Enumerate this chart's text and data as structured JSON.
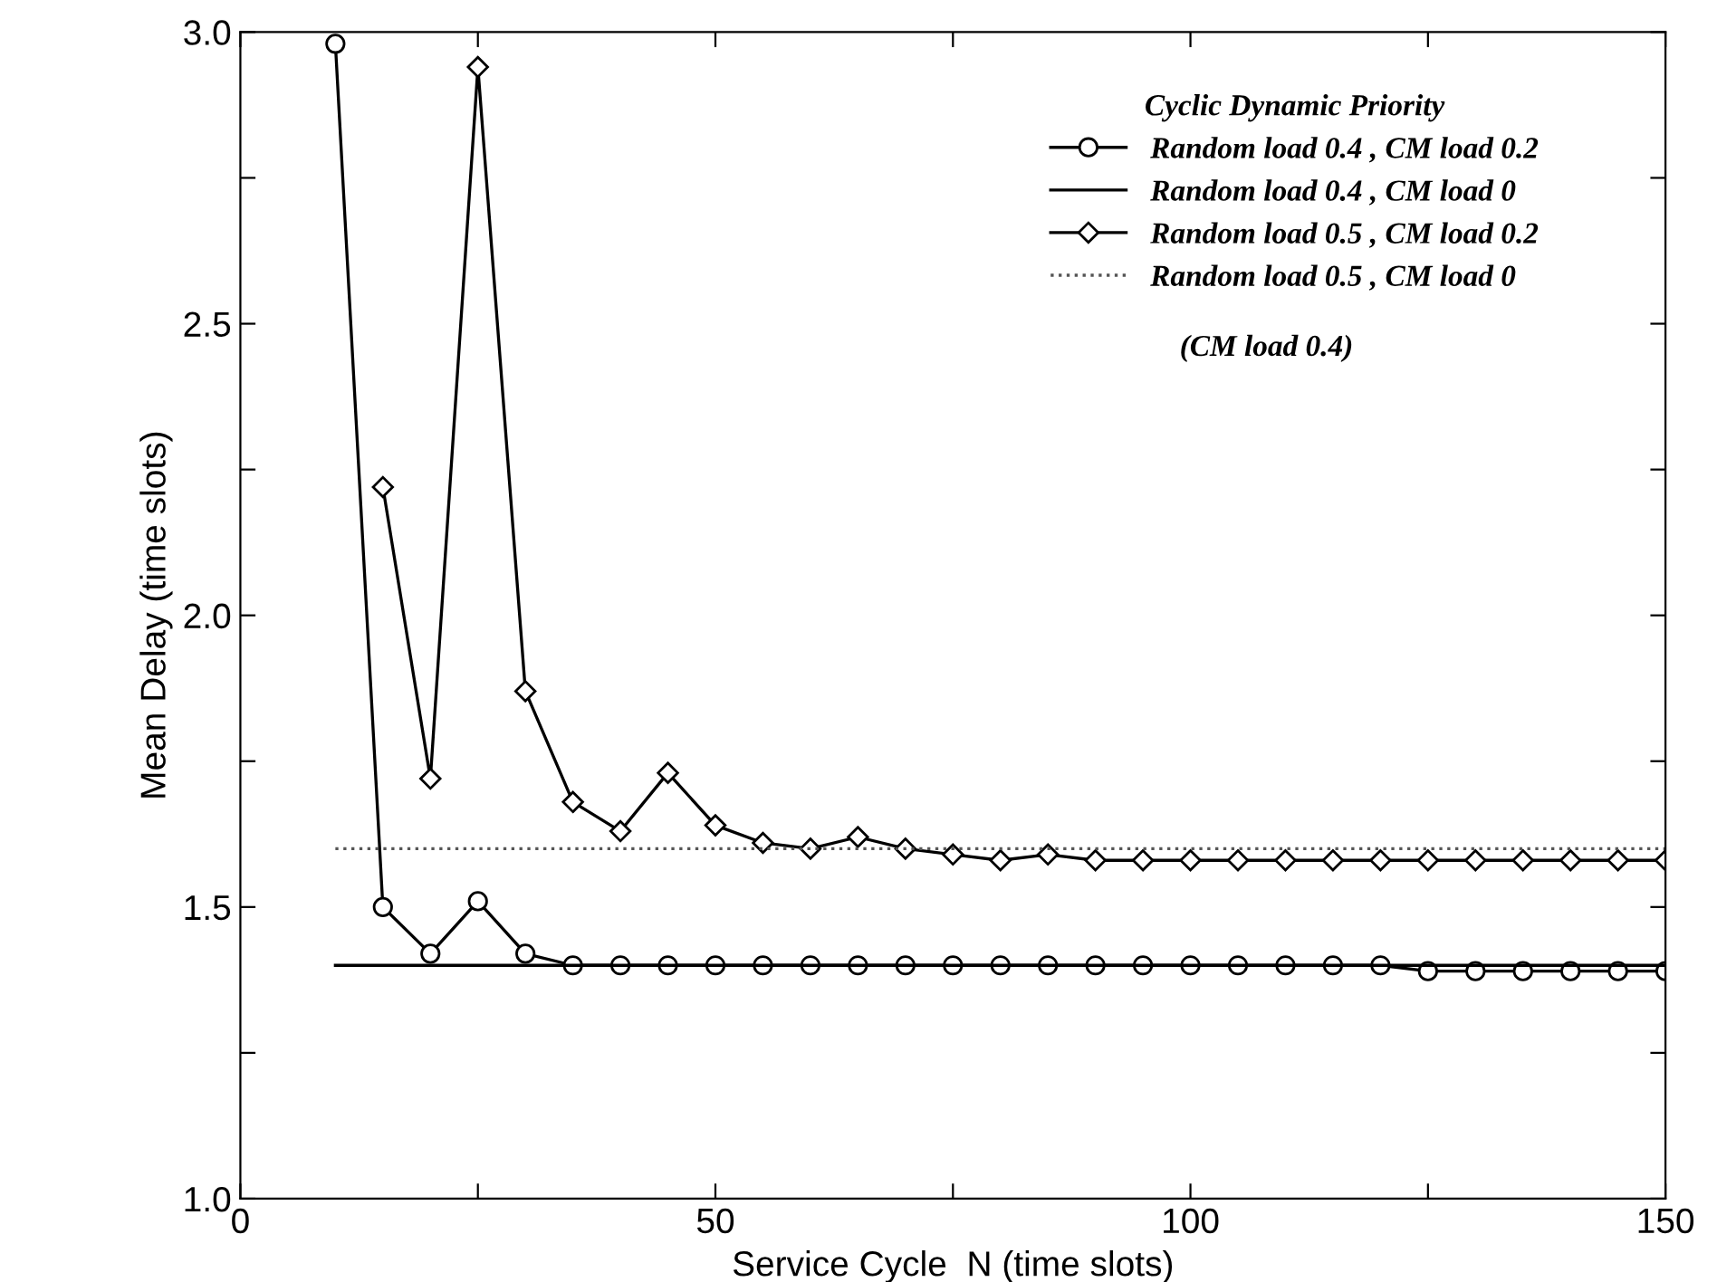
{
  "chart_data": {
    "type": "line",
    "xlabel": "Service Cycle  N (time slots)",
    "ylabel": "Mean Delay (time slots)",
    "legend_title": "Cyclic Dynamic Priority",
    "legend": "top right",
    "grid": false,
    "xlim": [
      0,
      150
    ],
    "ylim": [
      1.0,
      3.0
    ],
    "xticks": [
      0,
      {
        "value": 25,
        "label": null
      },
      50,
      {
        "value": 75,
        "label": null
      },
      100,
      {
        "value": 125,
        "label": null
      },
      150
    ],
    "yticks": [
      {
        "value": 1.0,
        "label": "1.0"
      },
      {
        "value": 1.25,
        "label": null
      },
      1.5,
      {
        "value": 1.75,
        "label": null
      },
      {
        "value": 2.0,
        "label": "2.0"
      },
      {
        "value": 2.25,
        "label": null
      },
      2.5,
      {
        "value": 2.75,
        "label": null
      },
      {
        "value": 3.0,
        "label": "3.0"
      }
    ],
    "annotations": [
      "(CM load 0.4)"
    ],
    "series": [
      {
        "name": "Random load 0.4 , CM load 0.2",
        "color": "#000000",
        "marker": "circle",
        "line_style": "solid",
        "x": [
          10,
          15,
          20,
          25,
          30,
          35,
          40,
          45,
          50,
          55,
          60,
          65,
          70,
          75,
          80,
          85,
          90,
          95,
          100,
          105,
          110,
          115,
          120,
          125,
          130,
          135,
          140,
          145,
          150
        ],
        "values": [
          2.98,
          1.5,
          1.42,
          1.51,
          1.42,
          1.4,
          1.4,
          1.4,
          1.4,
          1.4,
          1.4,
          1.4,
          1.4,
          1.4,
          1.4,
          1.4,
          1.4,
          1.4,
          1.4,
          1.4,
          1.4,
          1.4,
          1.4,
          1.39,
          1.39,
          1.39,
          1.39,
          1.39,
          1.39
        ]
      },
      {
        "name": "Random load 0.4 , CM load 0",
        "color": "#000000",
        "marker": "none",
        "line_style": "solid",
        "x": [
          10,
          150
        ],
        "values": [
          1.4,
          1.4
        ]
      },
      {
        "name": "Random load 0.5 , CM load 0.2",
        "color": "#000000",
        "marker": "diamond",
        "line_style": "solid",
        "x": [
          15,
          20,
          25,
          30,
          35,
          40,
          45,
          50,
          55,
          60,
          65,
          70,
          75,
          80,
          85,
          90,
          95,
          100,
          105,
          110,
          115,
          120,
          125,
          130,
          135,
          140,
          145,
          150
        ],
        "values": [
          2.22,
          1.72,
          2.94,
          1.87,
          1.68,
          1.63,
          1.73,
          1.64,
          1.61,
          1.6,
          1.62,
          1.6,
          1.59,
          1.58,
          1.59,
          1.58,
          1.58,
          1.58,
          1.58,
          1.58,
          1.58,
          1.58,
          1.58,
          1.58,
          1.58,
          1.58,
          1.58,
          1.58
        ]
      },
      {
        "name": "Random load 0.5 , CM load 0",
        "color": "#555555",
        "marker": "none",
        "line_style": "dotted",
        "x": [
          10,
          150
        ],
        "values": [
          1.6,
          1.6
        ]
      }
    ]
  }
}
